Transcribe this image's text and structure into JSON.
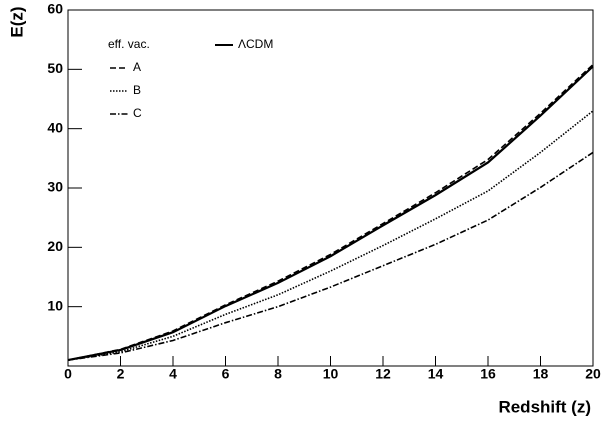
{
  "chart_data": {
    "type": "line",
    "x_label": "Redshift (z)",
    "y_label": "E(z)",
    "legend_title": "eff. vac.",
    "x": [
      0,
      2,
      4,
      6,
      8,
      10,
      12,
      14,
      16,
      18,
      20
    ],
    "series": [
      {
        "name": "ΛCDM",
        "color": "#000000",
        "dash": "solid",
        "values": [
          1,
          2.7,
          5.7,
          10.1,
          14,
          18.5,
          23.7,
          28.8,
          34.3,
          42.2,
          50.5
        ]
      },
      {
        "name": "A",
        "color": "#000000",
        "dash": "dashed",
        "values": [
          1,
          2.8,
          5.9,
          10.3,
          14.3,
          18.8,
          24,
          29.2,
          34.8,
          42.6,
          50.8
        ]
      },
      {
        "name": "B",
        "color": "#000000",
        "dash": "dotted",
        "values": [
          1,
          2.4,
          5,
          8.7,
          12,
          16,
          20.3,
          24.8,
          29.5,
          36,
          43
        ]
      },
      {
        "name": "C",
        "color": "#000000",
        "dash": "dashdot",
        "values": [
          1,
          2.2,
          4.3,
          7.3,
          10,
          13.3,
          16.9,
          20.5,
          24.6,
          30.1,
          36
        ]
      }
    ],
    "xlim": [
      0,
      20
    ],
    "xticks": [
      0,
      2,
      4,
      6,
      8,
      10,
      12,
      14,
      16,
      18,
      20
    ],
    "ylim": [
      0,
      60
    ],
    "yticks": [
      10,
      20,
      30,
      40,
      50,
      60
    ]
  }
}
